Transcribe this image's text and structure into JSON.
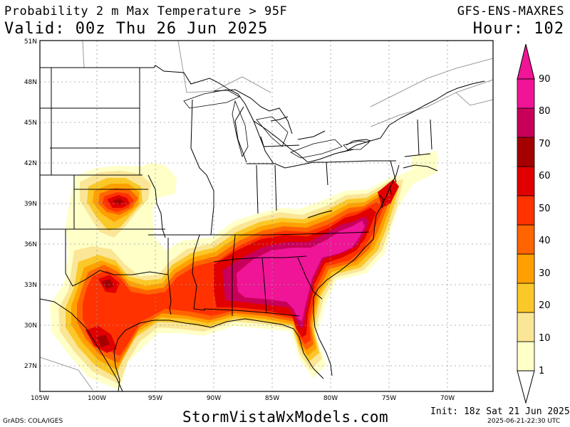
{
  "header": {
    "title": "Probability 2 m Max Temperature > 95F",
    "valid": "Valid: 00z Thu 26 Jun 2025",
    "model": "GFS-ENS-MAXRES",
    "hour": "Hour: 102"
  },
  "footer": {
    "website": "StormVistaWxModels.com",
    "init": "Init: 18z Sat 21 Jun 2025",
    "grads": "GrADS: COLA/IGES",
    "timestamp": "2025-06-21-22:30 UTC"
  },
  "map": {
    "lat_labels": [
      "51N",
      "48N",
      "45N",
      "42N",
      "39N",
      "36N",
      "33N",
      "30N",
      "27N"
    ],
    "lon_labels": [
      "105W",
      "100W",
      "95W",
      "90W",
      "85W",
      "80W",
      "75W",
      "70W"
    ]
  },
  "colorbar": {
    "labels": [
      "1",
      "10",
      "20",
      "30",
      "40",
      "50",
      "60",
      "70",
      "80",
      "90"
    ],
    "colors": [
      "#ffffc8",
      "#fae696",
      "#fac828",
      "#ffa000",
      "#ff6400",
      "#ff3200",
      "#e10000",
      "#a50000",
      "#c8005a",
      "#f01496"
    ]
  }
}
